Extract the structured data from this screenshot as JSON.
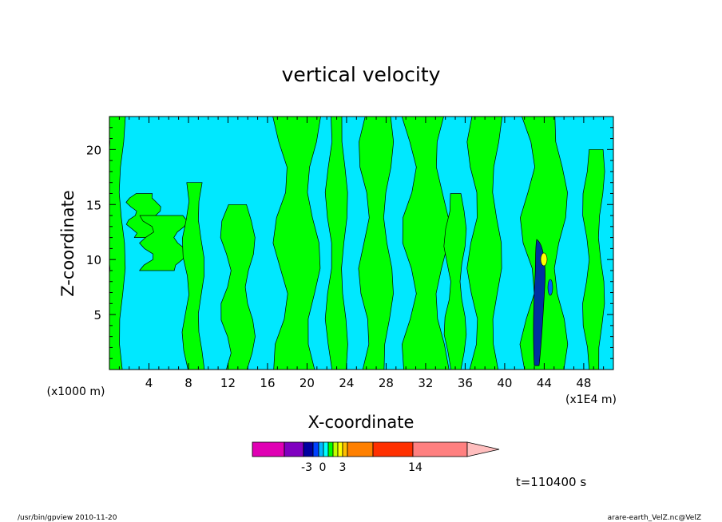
{
  "chart_data": {
    "type": "heatmap",
    "title": "vertical velocity",
    "xlabel": "X-coordinate",
    "ylabel": "Z-coordinate",
    "x_unit_left": "(x1000 m)",
    "x_unit_right": "(x1E4 m)",
    "xlim": [
      0,
      51
    ],
    "ylim": [
      0,
      23
    ],
    "xticks": [
      4,
      8,
      12,
      16,
      20,
      24,
      28,
      32,
      36,
      40,
      44,
      48
    ],
    "yticks": [
      5,
      10,
      15,
      20
    ],
    "colorbar": {
      "colors": [
        "#e000b4",
        "#8000c0",
        "#0000a0",
        "#0040ff",
        "#00b8ff",
        "#00ffff",
        "#00ff00",
        "#c0ff00",
        "#ffff00",
        "#ffc000",
        "#ff8000",
        "#ff3000",
        "#ff0000",
        "#ff8080",
        "#ffbebe"
      ],
      "tick_labels": [
        "-3",
        "0",
        "3",
        "14"
      ],
      "extend": "right"
    },
    "regions_green": [
      {
        "x": 0.5,
        "z_from": 0,
        "z_to": 23
      },
      {
        "x": 3.5,
        "z_from": 12,
        "z_to": 16
      },
      {
        "x": 5.5,
        "z_from": 9,
        "z_to": 14
      },
      {
        "x": 8.5,
        "z_from": 0,
        "z_to": 17
      },
      {
        "x": 13,
        "z_from": 0,
        "z_to": 15
      },
      {
        "x": 19,
        "z_from": 0,
        "z_to": 23
      },
      {
        "x": 23,
        "z_from": 0,
        "z_to": 23
      },
      {
        "x": 27,
        "z_from": 0,
        "z_to": 23
      },
      {
        "x": 32,
        "z_from": 0,
        "z_to": 23
      },
      {
        "x": 35,
        "z_from": 0,
        "z_to": 16
      },
      {
        "x": 38,
        "z_from": 0,
        "z_to": 23
      },
      {
        "x": 44,
        "z_from": 0,
        "z_to": 23
      },
      {
        "x": 49,
        "z_from": 0,
        "z_to": 20
      }
    ],
    "extremes": [
      {
        "x": 43.8,
        "z": 10,
        "value": "max"
      },
      {
        "x": 43.5,
        "z": 5,
        "value": "min"
      }
    ],
    "time_label": "t=110400 s"
  },
  "footer": {
    "left": "/usr/bin/gpview   2010-11-20",
    "right": "arare-earth_VelZ.nc@VelZ"
  }
}
